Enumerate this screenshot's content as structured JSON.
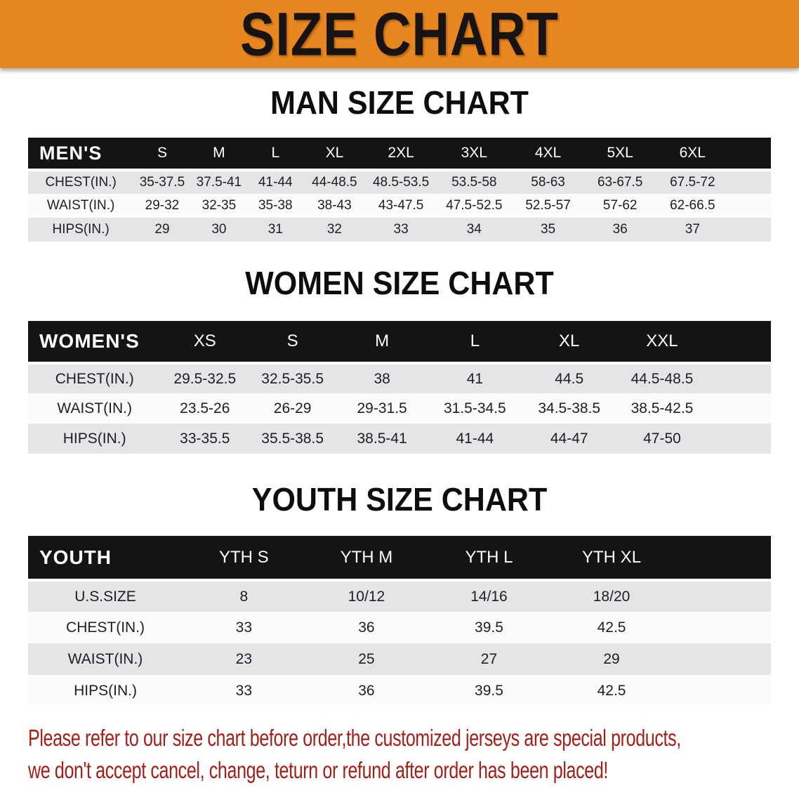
{
  "banner": {
    "title": "SIZE CHART",
    "bg_color": "#e8861f",
    "text_color": "#181413"
  },
  "sections": [
    {
      "heading": "MAN SIZE CHART",
      "table": {
        "group_label": "MEN'S",
        "sizes": [
          "S",
          "M",
          "L",
          "XL",
          "2XL",
          "3XL",
          "4XL",
          "5XL",
          "6XL"
        ],
        "rows": [
          {
            "label": "CHEST(IN.)",
            "values": [
              "35-37.5",
              "37.5-41",
              "41-44",
              "44-48.5",
              "48.5-53.5",
              "53.5-58",
              "58-63",
              "63-67.5",
              "67.5-72"
            ]
          },
          {
            "label": "WAIST(IN.)",
            "values": [
              "29-32",
              "32-35",
              "35-38",
              "38-43",
              "43-47.5",
              "47.5-52.5",
              "52.5-57",
              "57-62",
              "62-66.5"
            ]
          },
          {
            "label": "HIPS(IN.)",
            "values": [
              "29",
              "30",
              "31",
              "32",
              "33",
              "34",
              "35",
              "36",
              "37"
            ]
          }
        ]
      }
    },
    {
      "heading": "WOMEN SIZE CHART",
      "table": {
        "group_label": "WOMEN'S",
        "sizes": [
          "XS",
          "S",
          "M",
          "L",
          "XL",
          "XXL"
        ],
        "rows": [
          {
            "label": "CHEST(IN.)",
            "values": [
              "29.5-32.5",
              "32.5-35.5",
              "38",
              "41",
              "44.5",
              "44.5-48.5"
            ]
          },
          {
            "label": "WAIST(IN.)",
            "values": [
              "23.5-26",
              "26-29",
              "29-31.5",
              "31.5-34.5",
              "34.5-38.5",
              "38.5-42.5"
            ]
          },
          {
            "label": "HIPS(IN.)",
            "values": [
              "33-35.5",
              "35.5-38.5",
              "38.5-41",
              "41-44",
              "44-47",
              "47-50"
            ]
          }
        ]
      }
    },
    {
      "heading": "YOUTH SIZE CHART",
      "table": {
        "group_label": "YOUTH",
        "sizes": [
          "YTH S",
          "YTH M",
          "YTH L",
          "YTH XL"
        ],
        "rows": [
          {
            "label": "U.S.SIZE",
            "values": [
              "8",
              "10/12",
              "14/16",
              "18/20"
            ]
          },
          {
            "label": "CHEST(IN.)",
            "values": [
              "33",
              "36",
              "39.5",
              "42.5"
            ]
          },
          {
            "label": "WAIST(IN.)",
            "values": [
              "23",
              "25",
              "27",
              "29"
            ]
          },
          {
            "label": "HIPS(IN.)",
            "values": [
              "33",
              "36",
              "39.5",
              "42.5"
            ]
          }
        ]
      }
    }
  ],
  "footer": {
    "text_color": "#a32018",
    "lines": [
      "Please refer to our size chart before order,the customized jerseys are special products,",
      "we don't accept cancel, change, teturn or refund after order has been placed!"
    ]
  }
}
